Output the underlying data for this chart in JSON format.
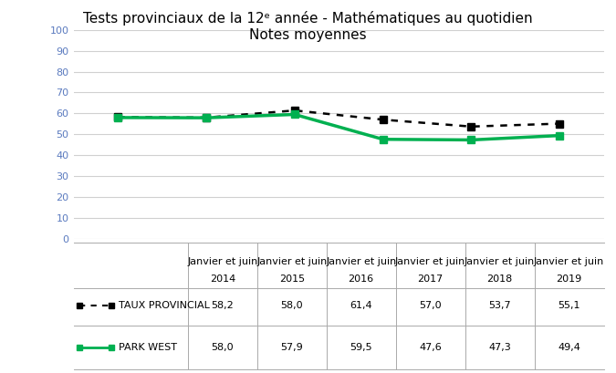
{
  "title_line1": "Tests provinciaux de la 12ᵉ année - Mathématiques au quotidien",
  "title_line2": "Notes moyennes",
  "x_labels": [
    "Janvier et juin\n2014",
    "Janvier et juin\n2015",
    "Janvier et juin\n2016",
    "Janvier et juin\n2017",
    "Janvier et juin\n2018",
    "Janvier et juin\n2019"
  ],
  "taux_provincial": [
    58.2,
    58.0,
    61.4,
    57.0,
    53.7,
    55.1
  ],
  "park_west": [
    58.0,
    57.9,
    59.5,
    47.6,
    47.3,
    49.4
  ],
  "taux_label": "TAUX PROVINCIAL",
  "park_label": "PARK WEST",
  "taux_color": "#000000",
  "park_color": "#00b050",
  "ylim": [
    0,
    100
  ],
  "yticks": [
    0,
    10,
    20,
    30,
    40,
    50,
    60,
    70,
    80,
    90,
    100
  ],
  "background_color": "#ffffff",
  "grid_color": "#d0d0d0",
  "title_fontsize": 11,
  "tick_fontsize": 8.0,
  "legend_fontsize": 8.0,
  "table_values_taux": [
    "58,2",
    "58,0",
    "61,4",
    "57,0",
    "53,7",
    "55,1"
  ],
  "table_values_park": [
    "58,0",
    "57,9",
    "59,5",
    "47,6",
    "47,3",
    "49,4"
  ]
}
